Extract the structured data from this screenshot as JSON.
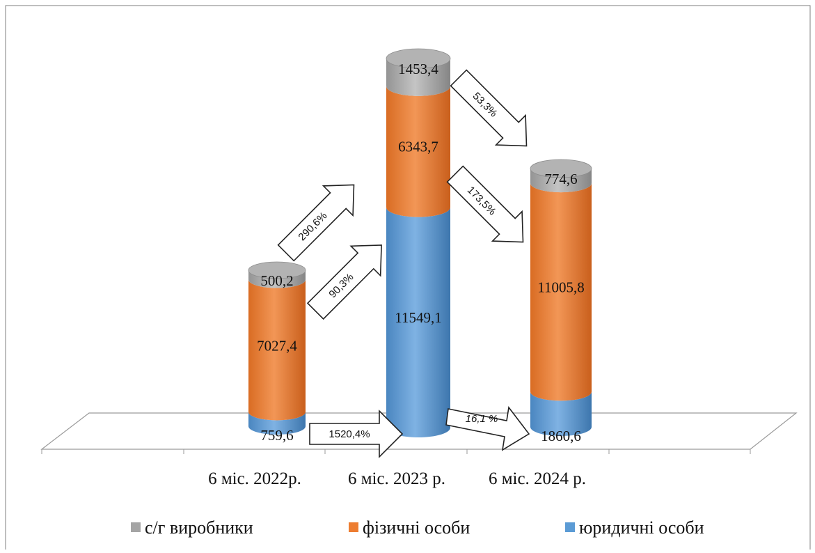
{
  "chart_data": {
    "type": "bar",
    "stacked": true,
    "style": "3d-cylinder",
    "title": "",
    "xlabel": "",
    "ylabel": "",
    "categories": [
      "6 міс. 2022р.",
      "6 міс. 2023 р.",
      "6 міс. 2024 р."
    ],
    "series": [
      {
        "name": "юридичні особи",
        "color": "#5b9bd5",
        "values": [
          759.6,
          11549.1,
          1860.6
        ],
        "labels": [
          "759,6",
          "11549,1",
          "1860,6"
        ]
      },
      {
        "name": "фізичні особи",
        "color": "#ed7d31",
        "values": [
          7027.4,
          6343.7,
          11005.8
        ],
        "labels": [
          "7027,4",
          "6343,7",
          "11005,8"
        ]
      },
      {
        "name": "с/г виробники",
        "color": "#a5a5a5",
        "values": [
          500.2,
          1453.4,
          774.6
        ],
        "labels": [
          "500,2",
          "1453,4",
          "774,6"
        ]
      }
    ],
    "legend_order": [
      "с/г виробники",
      "фізичні особи",
      "юридичні особи"
    ],
    "legend_position": "bottom",
    "grid": false,
    "annotations": [
      {
        "text": "290,6%"
      },
      {
        "text": "90,3%"
      },
      {
        "text": "1520,4%"
      },
      {
        "text": "53,3%"
      },
      {
        "text": "173,5%"
      },
      {
        "text": "16,1 %"
      }
    ]
  }
}
